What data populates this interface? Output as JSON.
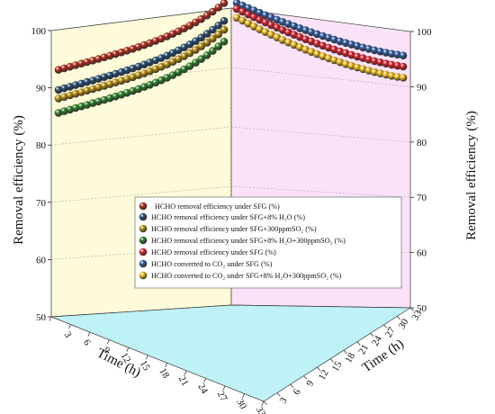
{
  "chart_data": {
    "type": "scatter",
    "ylabel_left": "Removal efficiency (%)",
    "ylabel_right": "Removal efficiency (%)",
    "xlabel_left": "Time (h)",
    "xlabel_right": "Time (h)",
    "y_ticks": [
      "50",
      "60",
      "70",
      "80",
      "90",
      "100"
    ],
    "ylim": [
      50,
      100
    ],
    "x_ticks_left": [
      "0",
      "3",
      "6",
      "9",
      "12",
      "15",
      "18",
      "21",
      "24",
      "27",
      "30",
      "33"
    ],
    "x_ticks_right": [
      "0",
      "3",
      "6",
      "9",
      "12",
      "15",
      "18",
      "21",
      "24",
      "27",
      "30",
      "33"
    ],
    "time_hours_per_panel": 12,
    "legend": [
      "HCHO removal efficiency under SFG (%)",
      "HCHO removal efficiency under SFG+8% H₂O  (%)",
      "HCHO removal efficiency under SFG+300ppmSO₂  (%)",
      "HCHO removal efficiency under SFG+8% H₂O+300ppmSO₂  (%)",
      "HCHO removal efficiency under SFG  (%)",
      "HCHO converted to CO₂ under SFG  (%)",
      "HCHO converted to CO₂ under SFG+8% H₂O+300ppmSO₂  (%)"
    ],
    "colors": {
      "panel_left": "#fdfbd9",
      "panel_right": "#fae3f8",
      "floor": "#bff2f7",
      "red_left": "#b02a1c",
      "navy": "#254a72",
      "gold": "#b68d12",
      "green": "#2f7d2b",
      "red_right": "#dc1f2b",
      "blue_right": "#2f5b9b",
      "yellow_right": "#f0bb1a"
    },
    "series_left": [
      {
        "color_key": "red_left",
        "start": 93.0,
        "end": 101.0
      },
      {
        "color_key": "navy",
        "start": 89.5,
        "end": 98.0
      },
      {
        "color_key": "gold",
        "start": 88.0,
        "end": 96.5
      },
      {
        "color_key": "green",
        "start": 85.5,
        "end": 94.5
      }
    ],
    "series_right": [
      {
        "color_key": "blue_right",
        "start": 101.0,
        "end": 95.5
      },
      {
        "color_key": "red_right",
        "start": 100.0,
        "end": 93.5
      },
      {
        "color_key": "yellow_right",
        "start": 98.5,
        "end": 91.5
      }
    ]
  }
}
